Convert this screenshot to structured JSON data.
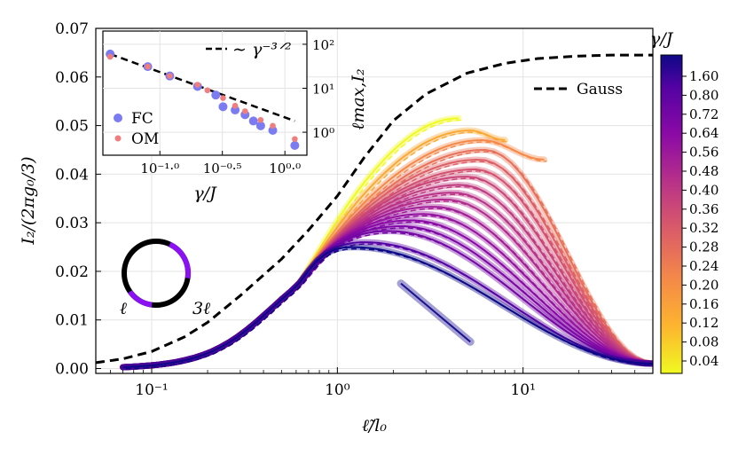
{
  "chart_data": {
    "type": "line",
    "main": {
      "xlabel": "ℓ̃/l₀",
      "ylabel": "I₂/(2πg₀/3)",
      "xscale": "log",
      "xlim": [
        0.05,
        50
      ],
      "ylim": [
        -0.001,
        0.07
      ],
      "yticks": [
        "0.00",
        "0.01",
        "0.02",
        "0.03",
        "0.04",
        "0.05",
        "0.06",
        "0.07"
      ],
      "xticks": [
        {
          "value": 0.1,
          "label": "10⁻¹"
        },
        {
          "value": 1,
          "label": "10⁰"
        },
        {
          "value": 10,
          "label": "10¹"
        }
      ],
      "gauss": {
        "name": "Gauss",
        "x": [
          0.05,
          0.07,
          0.1,
          0.15,
          0.2,
          0.3,
          0.5,
          0.7,
          1.0,
          1.4,
          2,
          3,
          5,
          8,
          12,
          20,
          30,
          50
        ],
        "y": [
          0.0012,
          0.002,
          0.0035,
          0.0065,
          0.0095,
          0.015,
          0.0225,
          0.0285,
          0.0355,
          0.0435,
          0.051,
          0.0565,
          0.0608,
          0.0628,
          0.0638,
          0.0643,
          0.0645,
          0.0645
        ]
      },
      "colorbar": {
        "label": "γ/J",
        "ticks": [
          "1.60",
          "0.80",
          "0.72",
          "0.64",
          "0.56",
          "0.48",
          "0.40",
          "0.36",
          "0.32",
          "0.28",
          "0.24",
          "0.20",
          "0.16",
          "0.12",
          "0.08",
          "0.04"
        ]
      },
      "series": [
        {
          "gamma": 0.04,
          "peak_x": 4.5,
          "peak_y": 0.0515,
          "end_x": 4.5,
          "end_y": 0.0515
        },
        {
          "gamma": 0.08,
          "peak_x": 5.2,
          "peak_y": 0.049,
          "end_x": 8,
          "end_y": 0.047
        },
        {
          "gamma": 0.12,
          "peak_x": 6.0,
          "peak_y": 0.047,
          "end_x": 13,
          "end_y": 0.043
        },
        {
          "gamma": 0.16,
          "peak_x": 6.2,
          "peak_y": 0.045,
          "end_x": 50,
          "end_y": 0.001
        },
        {
          "gamma": 0.2,
          "peak_x": 5.8,
          "peak_y": 0.043,
          "end_x": 50,
          "end_y": 0.001
        },
        {
          "gamma": 0.24,
          "peak_x": 5.5,
          "peak_y": 0.041,
          "end_x": 50,
          "end_y": 0.001
        },
        {
          "gamma": 0.28,
          "peak_x": 5.0,
          "peak_y": 0.0395,
          "end_x": 50,
          "end_y": 0.001
        },
        {
          "gamma": 0.32,
          "peak_x": 4.6,
          "peak_y": 0.0378,
          "end_x": 50,
          "end_y": 0.001
        },
        {
          "gamma": 0.36,
          "peak_x": 4.2,
          "peak_y": 0.0362,
          "end_x": 50,
          "end_y": 0.001
        },
        {
          "gamma": 0.4,
          "peak_x": 3.8,
          "peak_y": 0.0348,
          "end_x": 50,
          "end_y": 0.001
        },
        {
          "gamma": 0.48,
          "peak_x": 3.3,
          "peak_y": 0.0333,
          "end_x": 50,
          "end_y": 0.001
        },
        {
          "gamma": 0.56,
          "peak_x": 2.9,
          "peak_y": 0.0318,
          "end_x": 50,
          "end_y": 0.001
        },
        {
          "gamma": 0.64,
          "peak_x": 2.5,
          "peak_y": 0.0305,
          "end_x": 50,
          "end_y": 0.001
        },
        {
          "gamma": 0.72,
          "peak_x": 2.2,
          "peak_y": 0.0293,
          "end_x": 50,
          "end_y": 0.001
        },
        {
          "gamma": 0.8,
          "peak_x": 1.9,
          "peak_y": 0.0283,
          "end_x": 50,
          "end_y": 0.001
        },
        {
          "gamma": 1.1,
          "peak_x": 1.4,
          "peak_y": 0.026,
          "end_x": 50,
          "end_y": 0.001
        },
        {
          "gamma": 1.6,
          "peak_x": 1.2,
          "peak_y": 0.025,
          "end_x": 50,
          "end_y": 0.001
        }
      ],
      "segment": {
        "x": [
          2.2,
          5.2
        ],
        "y": [
          0.0175,
          0.0055
        ]
      }
    },
    "inset": {
      "xlabel": "γ/J",
      "ylabel": "ℓmax,I₂",
      "xscale": "log",
      "yscale": "log",
      "xticks": [
        "10⁻¹·⁰",
        "10⁻⁰·⁵",
        "10⁰·⁰"
      ],
      "yticks": [
        "10⁰",
        "10¹",
        "10²"
      ],
      "fit_label": "∼ γ⁻³ᐟ²",
      "legend": {
        "fc": "FC",
        "om": "OM"
      },
      "fc": {
        "x": [
          0.04,
          0.08,
          0.12,
          0.2,
          0.28,
          0.32,
          0.4,
          0.48,
          0.56,
          0.64,
          0.8,
          1.2
        ],
        "y": [
          60,
          31,
          19,
          11,
          7,
          3.8,
          3.2,
          2.5,
          1.8,
          1.4,
          1.1,
          0.5
        ]
      },
      "om": {
        "x": [
          0.04,
          0.08,
          0.12,
          0.2,
          0.24,
          0.32,
          0.4,
          0.48,
          0.64,
          0.8,
          1.2
        ],
        "y": [
          52,
          31,
          19,
          12,
          9,
          6,
          4,
          3,
          1.9,
          1.4,
          0.7
        ]
      },
      "fit": {
        "x": [
          0.04,
          1.2
        ],
        "y": [
          60,
          1.8
        ]
      }
    }
  },
  "colors": {
    "gauss": "#000000",
    "fc": "#7b7bf2",
    "om": "#f07e7e"
  },
  "diagram": {
    "label_left": "ℓ",
    "label_right": "3ℓ"
  }
}
